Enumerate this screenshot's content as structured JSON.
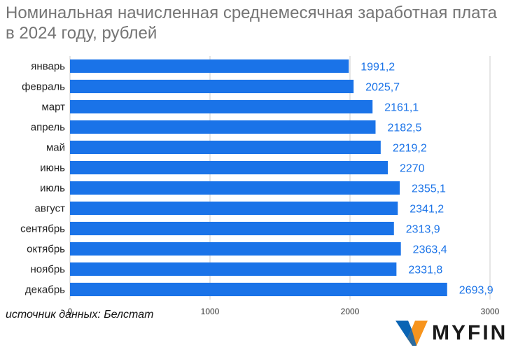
{
  "title": "Номинальная начисленная среднемесячная заработная плата в 2024 году, рублей",
  "source_note": "источник данных: Белстат",
  "brand": {
    "name": "MYFIN"
  },
  "colors": {
    "bar": "#1a73e8",
    "label": "#1a73e8",
    "title": "#757575",
    "grid": "#cccccc",
    "logo_blue": "#0a64b4",
    "logo_orange": "#f7941d"
  },
  "chart_data": {
    "type": "bar",
    "orientation": "horizontal",
    "title": "Номинальная начисленная среднемесячная заработная плата в 2024 году, рублей",
    "xlabel": "",
    "ylabel": "",
    "categories": [
      "январь",
      "февраль",
      "март",
      "апрель",
      "май",
      "июнь",
      "июль",
      "август",
      "сентябрь",
      "октябрь",
      "ноябрь",
      "декабрь"
    ],
    "values": [
      1991.2,
      2025.7,
      2161.1,
      2182.5,
      2219.2,
      2270,
      2355.1,
      2341.2,
      2313.9,
      2363.4,
      2331.8,
      2693.9
    ],
    "value_labels": [
      "1991,2",
      "2025,7",
      "2161,1",
      "2182,5",
      "2219,2",
      "2270",
      "2355,1",
      "2341,2",
      "2313,9",
      "2363,4",
      "2331,8",
      "2693,9"
    ],
    "xlim": [
      0,
      3000
    ],
    "xticks": [
      0,
      1000,
      2000,
      3000
    ],
    "grid": "vertical"
  }
}
